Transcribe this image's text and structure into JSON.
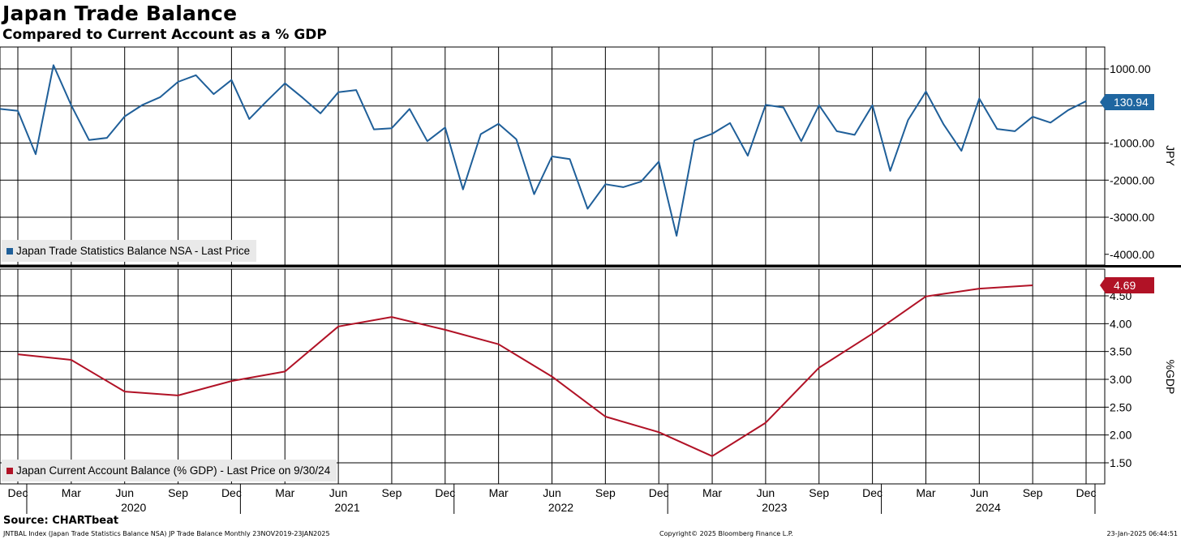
{
  "title": "Japan Trade Balance",
  "subtitle": "Compared to Current Account as a % GDP",
  "source": "Source: CHARTbeat",
  "footer": {
    "left": "JNTBAL Index (Japan Trade Statistics Balance NSA) JP Trade Balance  Monthly 23NOV2019-23JAN2025",
    "center": "Copyright© 2025 Bloomberg Finance L.P.",
    "right": "23-Jan-2025 06:44:51"
  },
  "colors": {
    "trade": "#1f5f99",
    "current_account": "#b11226",
    "tag_trade": "#1f66a0",
    "tag_ca": "#b11226"
  },
  "chart_data": [
    {
      "type": "line",
      "name": "Japan Trade Statistics Balance NSA - Last Price",
      "legend": "Japan Trade Statistics Balance NSA - Last Price",
      "ylabel": "JPY",
      "ylim": [
        -4000,
        1000
      ],
      "ytick_labels": [
        "1000.00",
        "-1000.00",
        "-2000.00",
        "-3000.00",
        "-4000.00"
      ],
      "ytick_values": [
        1000,
        -1000,
        -2000,
        -3000,
        -4000
      ],
      "last_value_label": "130.94",
      "start": "2019-11",
      "values": [
        -80,
        -130,
        -1300,
        1100,
        20,
        -920,
        -860,
        -280,
        30,
        240,
        650,
        830,
        320,
        700,
        -350,
        140,
        610,
        220,
        -200,
        370,
        430,
        -630,
        -600,
        -80,
        -950,
        -580,
        -2250,
        -760,
        -480,
        -900,
        -2380,
        -1360,
        -1430,
        -2770,
        -2110,
        -2190,
        -2040,
        -1500,
        -3500,
        -930,
        -750,
        -460,
        -1340,
        30,
        -40,
        -950,
        20,
        -680,
        -780,
        20,
        -1750,
        -380,
        390,
        -500,
        -1210,
        200,
        -620,
        -680,
        -290,
        -450,
        -110,
        130.94
      ]
    },
    {
      "type": "line",
      "name": "Japan Current Account Balance (% GDP) - Last Price on 9/30/24",
      "legend": "Japan Current Account Balance (% GDP) - Last Price on 9/30/24",
      "ylabel": "%GDP",
      "ylim": [
        1.3,
        4.8
      ],
      "ytick_labels": [
        "4.50",
        "4.00",
        "3.50",
        "3.00",
        "2.50",
        "2.00",
        "1.50"
      ],
      "ytick_values": [
        4.5,
        4.0,
        3.5,
        3.0,
        2.5,
        2.0,
        1.5
      ],
      "last_value_label": "4.69",
      "x": [
        "2019-12",
        "2020-03",
        "2020-06",
        "2020-09",
        "2020-12",
        "2021-03",
        "2021-06",
        "2021-09",
        "2021-12",
        "2022-03",
        "2022-06",
        "2022-09",
        "2022-12",
        "2023-03",
        "2023-06",
        "2023-09",
        "2023-12",
        "2024-03",
        "2024-06",
        "2024-09"
      ],
      "values": [
        3.45,
        3.35,
        2.78,
        2.71,
        2.97,
        3.14,
        3.95,
        4.12,
        3.89,
        3.63,
        3.05,
        2.33,
        2.05,
        1.62,
        2.22,
        3.21,
        3.82,
        4.49,
        4.63,
        4.69
      ]
    }
  ],
  "x_axis": {
    "month_labels": [
      "Dec",
      "Mar",
      "Jun",
      "Sep",
      "Dec",
      "Mar",
      "Jun",
      "Sep",
      "Dec",
      "Mar",
      "Jun",
      "Sep",
      "Dec",
      "Mar",
      "Jun",
      "Sep",
      "Dec",
      "Mar",
      "Jun",
      "Sep",
      "Dec"
    ],
    "year_labels": [
      "2020",
      "2021",
      "2022",
      "2023",
      "2024"
    ]
  }
}
